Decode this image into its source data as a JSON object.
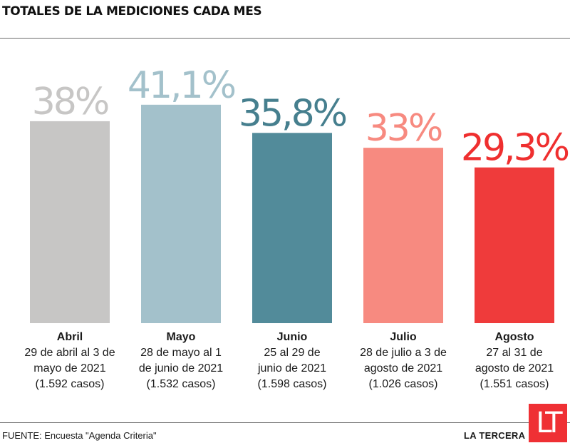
{
  "title": "TOTALES DE LA MEDICIONES CADA MES",
  "chart_data": {
    "type": "bar",
    "categories": [
      "Abril",
      "Mayo",
      "Junio",
      "Julio",
      "Agosto"
    ],
    "values": [
      38,
      41.1,
      35.8,
      33,
      29.3
    ],
    "value_labels": [
      "38%",
      "41,1%",
      "35,8%",
      "33%",
      "29,3%"
    ],
    "date_ranges": [
      [
        "29 de abril al 3 de",
        "mayo de 2021"
      ],
      [
        "28 de mayo al 1",
        "de junio de 2021"
      ],
      [
        "25 al 29 de",
        "junio de 2021"
      ],
      [
        "28 de julio a 3 de",
        "agosto de 2021"
      ],
      [
        "27 al 31 de",
        "agosto de 2021"
      ]
    ],
    "cases": [
      "(1.592 casos)",
      "(1.532 casos)",
      "(1.598 casos)",
      "(1.026 casos)",
      "(1.551 casos)"
    ],
    "colors": [
      "#c7c6c5",
      "#a3c1cb",
      "#528b9a",
      "#f78a80",
      "#ef3b3b"
    ],
    "label_colors": [
      "#c7c6c5",
      "#a3c1cb",
      "#467f8e",
      "#f78a80",
      "#ef2f2f"
    ],
    "ylim": [
      0,
      45
    ],
    "grid": false,
    "legend": "none",
    "xlabel": "",
    "ylabel": ""
  },
  "footer": {
    "source": "FUENTE: Encuesta \"Agenda Criteria\"",
    "brand": "LA TERCERA",
    "logo": "LT"
  }
}
